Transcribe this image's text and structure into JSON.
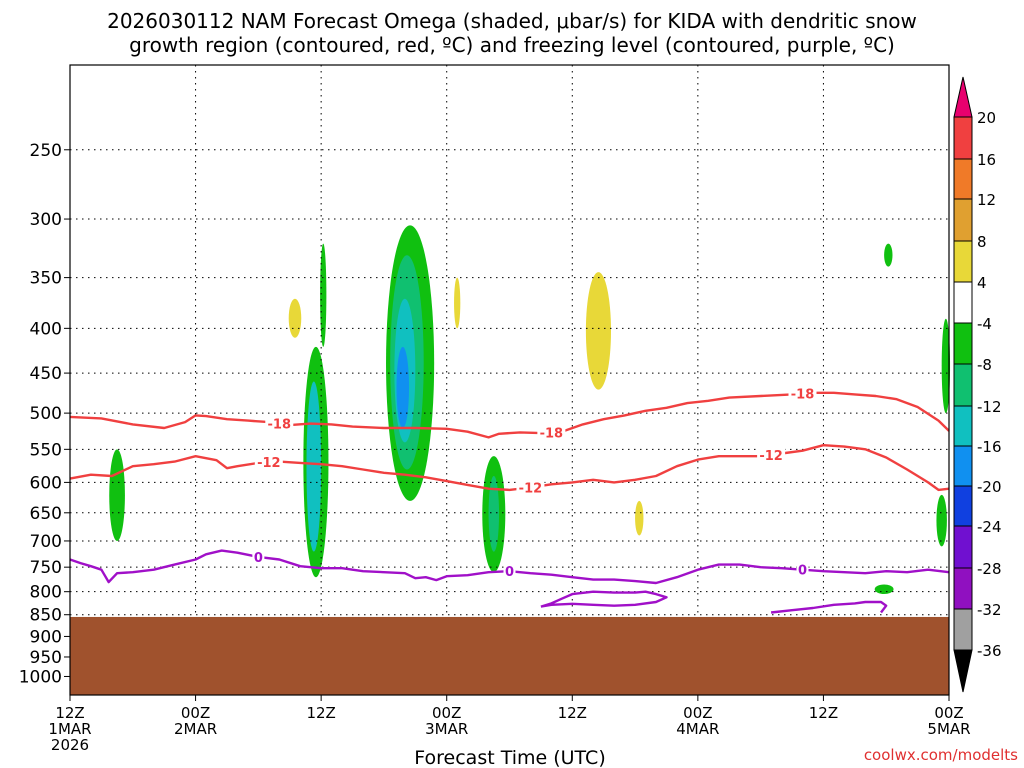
{
  "chart_data": {
    "type": "heatmap",
    "title_line1": "2026030112 NAM Forecast Omega (shaded, μbar/s) for KIDA with dendritic snow",
    "title_line2": "growth region (contoured, red, ºC) and freezing level (contoured, purple, ºC)",
    "xlabel": "Forecast Time (UTC)",
    "ylabel": "",
    "credit": "coolwx.com/modelts",
    "x_range_hours": [
      0,
      84
    ],
    "y_range_hpa": [
      1050,
      200
    ],
    "x_ticks": [
      {
        "hour": 0,
        "lines": [
          "12Z",
          "1MAR",
          "2026"
        ]
      },
      {
        "hour": 12,
        "lines": [
          "00Z",
          "2MAR"
        ]
      },
      {
        "hour": 24,
        "lines": [
          "12Z"
        ]
      },
      {
        "hour": 36,
        "lines": [
          "00Z",
          "3MAR"
        ]
      },
      {
        "hour": 48,
        "lines": [
          "12Z"
        ]
      },
      {
        "hour": 60,
        "lines": [
          "00Z",
          "4MAR"
        ]
      },
      {
        "hour": 72,
        "lines": [
          "12Z"
        ]
      },
      {
        "hour": 84,
        "lines": [
          "00Z",
          "5MAR"
        ]
      }
    ],
    "y_ticks": [
      250,
      300,
      350,
      400,
      450,
      500,
      550,
      600,
      650,
      700,
      750,
      800,
      850,
      900,
      950,
      1000
    ],
    "colorbar": {
      "levels": [
        "20",
        "16",
        "12",
        "8",
        "4",
        "-4",
        "-8",
        "-12",
        "-16",
        "-20",
        "-24",
        "-28",
        "-32",
        "-36"
      ],
      "colors": [
        "#e8006e",
        "#f04040",
        "#f07a28",
        "#e0a030",
        "#e8d838",
        "#ffffff",
        "#10c010",
        "#10c070",
        "#10c0c0",
        "#1090f0",
        "#1040e0",
        "#7010d0",
        "#9010c0",
        "#a0a0a0",
        "#000000"
      ]
    },
    "terrain": {
      "top_hpa": 855,
      "color": "#a0522d"
    },
    "omega_shading": [
      {
        "name": "cell-d1-06z",
        "hour_center": 4.5,
        "hour_halfwidth": 0.75,
        "top_hpa": 550,
        "bottom_hpa": 700,
        "value": -6
      },
      {
        "name": "cell-d1-10z-yellow",
        "hour_center": 21.5,
        "hour_halfwidth": 0.6,
        "top_hpa": 370,
        "bottom_hpa": 410,
        "value": 5
      },
      {
        "name": "cell-d1-12z-green",
        "hour_center": 23.5,
        "hour_halfwidth": 1.2,
        "top_hpa": 420,
        "bottom_hpa": 770,
        "value": -8
      },
      {
        "name": "cell-d1-12z-core",
        "hour_center": 23.3,
        "hour_halfwidth": 0.7,
        "top_hpa": 460,
        "bottom_hpa": 720,
        "value": -13
      },
      {
        "name": "cell-d1-12z-top",
        "hour_center": 24.2,
        "hour_halfwidth": 0.3,
        "top_hpa": 320,
        "bottom_hpa": 420,
        "value": -6
      },
      {
        "name": "cell-d2-21z",
        "hour_center": 32.5,
        "hour_halfwidth": 2.3,
        "top_hpa": 305,
        "bottom_hpa": 630,
        "value": -6
      },
      {
        "name": "cell-d2-21z-teal",
        "hour_center": 32.2,
        "hour_halfwidth": 1.6,
        "top_hpa": 330,
        "bottom_hpa": 580,
        "value": -11
      },
      {
        "name": "cell-d2-21z-cyan",
        "hour_center": 32.0,
        "hour_halfwidth": 1.0,
        "top_hpa": 370,
        "bottom_hpa": 540,
        "value": -14
      },
      {
        "name": "cell-d2-21z-blue",
        "hour_center": 31.8,
        "hour_halfwidth": 0.6,
        "top_hpa": 420,
        "bottom_hpa": 520,
        "value": -17
      },
      {
        "name": "cell-d2-22z-yellow",
        "hour_center": 37.0,
        "hour_halfwidth": 0.3,
        "top_hpa": 350,
        "bottom_hpa": 400,
        "value": 5
      },
      {
        "name": "cell-d3-03z",
        "hour_center": 40.5,
        "hour_halfwidth": 1.1,
        "top_hpa": 560,
        "bottom_hpa": 760,
        "value": -7
      },
      {
        "name": "cell-d3-03z-teal",
        "hour_center": 40.5,
        "hour_halfwidth": 0.5,
        "top_hpa": 590,
        "bottom_hpa": 720,
        "value": -11
      },
      {
        "name": "cell-d3-13z-yellow",
        "hour_center": 50.5,
        "hour_halfwidth": 1.2,
        "top_hpa": 345,
        "bottom_hpa": 470,
        "value": 5
      },
      {
        "name": "cell-d3-18z-yellow",
        "hour_center": 54.4,
        "hour_halfwidth": 0.4,
        "top_hpa": 630,
        "bottom_hpa": 690,
        "value": 5
      },
      {
        "name": "cell-d4-17z-top",
        "hour_center": 78.2,
        "hour_halfwidth": 0.4,
        "top_hpa": 320,
        "bottom_hpa": 340,
        "value": -6
      },
      {
        "name": "cell-d4-17z-low",
        "hour_center": 77.8,
        "hour_halfwidth": 0.9,
        "top_hpa": 785,
        "bottom_hpa": 805,
        "value": -6
      },
      {
        "name": "cell-d4-23z-upper",
        "hour_center": 83.7,
        "hour_halfwidth": 0.4,
        "top_hpa": 390,
        "bottom_hpa": 500,
        "value": -6
      },
      {
        "name": "cell-d4-23z-lower",
        "hour_center": 83.3,
        "hour_halfwidth": 0.5,
        "top_hpa": 620,
        "bottom_hpa": 710,
        "value": -6
      }
    ],
    "contours": [
      {
        "name": "isotherm-minus-18",
        "label": "-18",
        "color": "#f04040",
        "label_hours": [
          20,
          46,
          70
        ],
        "hours": [
          0,
          3,
          6,
          9,
          11,
          12,
          13,
          15,
          17,
          19,
          21,
          23,
          25,
          27,
          30,
          33,
          36,
          38,
          40,
          41,
          43,
          45,
          47,
          49,
          51,
          53,
          55,
          57,
          59,
          61,
          63,
          66,
          69,
          71,
          73,
          75,
          77,
          79,
          81,
          83,
          84
        ],
        "hpa": [
          505,
          507,
          515,
          520,
          512,
          503,
          504,
          508,
          510,
          512,
          516,
          514,
          515,
          518,
          520,
          520,
          521,
          525,
          533,
          528,
          526,
          527,
          525,
          515,
          508,
          503,
          497,
          493,
          487,
          484,
          480,
          478,
          476,
          474,
          474,
          476,
          478,
          482,
          492,
          510,
          524
        ]
      },
      {
        "name": "isotherm-minus-12",
        "label": "-12",
        "color": "#f04040",
        "label_hours": [
          19,
          44,
          67
        ],
        "hours": [
          0,
          2,
          4,
          6,
          8,
          10,
          12,
          14,
          15,
          16,
          18,
          20,
          22,
          24,
          26,
          28,
          30,
          32,
          34,
          36,
          38,
          40,
          42,
          44,
          46,
          48,
          50,
          52,
          54,
          56,
          58,
          60,
          62,
          64,
          66,
          68,
          70,
          72,
          74,
          76,
          78,
          80,
          82,
          83,
          84
        ],
        "hpa": [
          594,
          588,
          590,
          575,
          572,
          568,
          560,
          566,
          578,
          575,
          570,
          568,
          570,
          572,
          575,
          580,
          585,
          588,
          592,
          598,
          604,
          610,
          612,
          608,
          603,
          600,
          596,
          600,
          596,
          590,
          575,
          565,
          560,
          560,
          560,
          556,
          552,
          544,
          546,
          550,
          562,
          580,
          600,
          612,
          610
        ]
      },
      {
        "name": "isotherm-zero",
        "label": "0",
        "color": "#a010c8",
        "label_hours": [
          18,
          42,
          70
        ],
        "hours": [
          0,
          1,
          2,
          3,
          3.7,
          4.5,
          6,
          8,
          10,
          12,
          13,
          14.5,
          16,
          18,
          20,
          22,
          24,
          26,
          28,
          30,
          32,
          33,
          34,
          35,
          36,
          38,
          40,
          42,
          44,
          46,
          48,
          50,
          52,
          54,
          56,
          58,
          60,
          62,
          64,
          66,
          68,
          70,
          72,
          74,
          76,
          78,
          80,
          82,
          84
        ],
        "hpa": [
          735,
          742,
          748,
          755,
          780,
          762,
          760,
          755,
          745,
          735,
          725,
          718,
          722,
          730,
          735,
          748,
          752,
          752,
          758,
          760,
          762,
          772,
          770,
          776,
          768,
          766,
          760,
          758,
          762,
          765,
          770,
          775,
          775,
          778,
          782,
          770,
          755,
          745,
          745,
          750,
          752,
          755,
          758,
          760,
          762,
          758,
          760,
          755,
          760
        ]
      },
      {
        "name": "isotherm-zero-low",
        "label": "",
        "color": "#a010c8",
        "label_hours": [],
        "hours": [
          45,
          46,
          47,
          48,
          50,
          52,
          54,
          55,
          56,
          57,
          56,
          54,
          52,
          50,
          48,
          46,
          45
        ],
        "hpa": [
          832,
          825,
          815,
          805,
          800,
          802,
          802,
          800,
          805,
          812,
          822,
          828,
          830,
          828,
          826,
          828,
          832
        ]
      },
      {
        "name": "isotherm-zero-surface",
        "label": "",
        "color": "#a010c8",
        "label_hours": [],
        "hours": [
          67,
          69,
          71,
          73,
          75,
          76,
          77.5,
          78,
          77.5
        ],
        "hpa": [
          845,
          840,
          835,
          828,
          825,
          822,
          822,
          830,
          845
        ]
      }
    ]
  }
}
